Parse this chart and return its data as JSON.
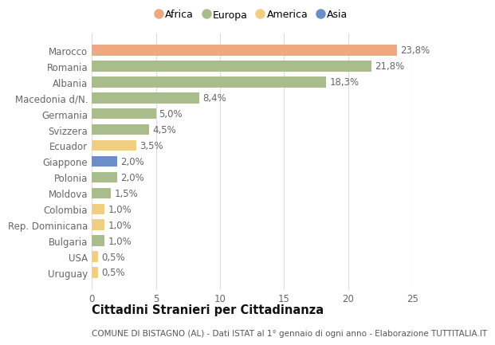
{
  "countries": [
    "Marocco",
    "Romania",
    "Albania",
    "Macedonia d/N.",
    "Germania",
    "Svizzera",
    "Ecuador",
    "Giappone",
    "Polonia",
    "Moldova",
    "Colombia",
    "Rep. Dominicana",
    "Bulgaria",
    "USA",
    "Uruguay"
  ],
  "values": [
    23.8,
    21.8,
    18.3,
    8.4,
    5.0,
    4.5,
    3.5,
    2.0,
    2.0,
    1.5,
    1.0,
    1.0,
    1.0,
    0.5,
    0.5
  ],
  "labels": [
    "23,8%",
    "21,8%",
    "18,3%",
    "8,4%",
    "5,0%",
    "4,5%",
    "3,5%",
    "2,0%",
    "2,0%",
    "1,5%",
    "1,0%",
    "1,0%",
    "1,0%",
    "0,5%",
    "0,5%"
  ],
  "continents": [
    "Africa",
    "Europa",
    "Europa",
    "Europa",
    "Europa",
    "Europa",
    "America",
    "Asia",
    "Europa",
    "Europa",
    "America",
    "America",
    "Europa",
    "America",
    "America"
  ],
  "colors": {
    "Africa": "#F0A882",
    "Europa": "#A8BC8C",
    "America": "#F0CE82",
    "Asia": "#6B8EC8"
  },
  "legend_order": [
    "Africa",
    "Europa",
    "America",
    "Asia"
  ],
  "title": "Cittadini Stranieri per Cittadinanza",
  "subtitle": "COMUNE DI BISTAGNO (AL) - Dati ISTAT al 1° gennaio di ogni anno - Elaborazione TUTTITALIA.IT",
  "xlim": [
    0,
    25
  ],
  "xticks": [
    0,
    5,
    10,
    15,
    20,
    25
  ],
  "background_color": "#ffffff",
  "grid_color": "#dddddd",
  "bar_height": 0.68,
  "label_fontsize": 8.5,
  "tick_fontsize": 8.5,
  "title_fontsize": 10.5,
  "subtitle_fontsize": 7.5,
  "label_color": "#666666",
  "title_color": "#111111",
  "subtitle_color": "#555555"
}
